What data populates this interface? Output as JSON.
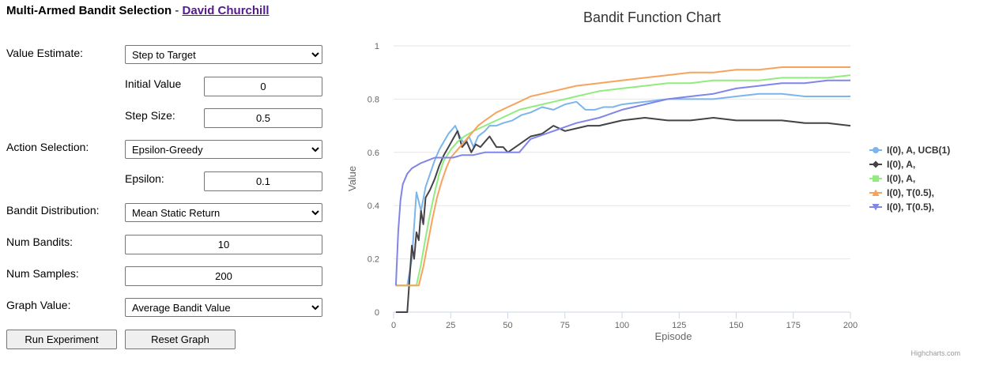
{
  "header": {
    "title": "Multi-Armed Bandit Selection",
    "separator": " - ",
    "author": "David Churchill"
  },
  "controls": {
    "value_estimate": {
      "label": "Value Estimate:",
      "selected": "Step to Target"
    },
    "initial_value": {
      "label": "Initial Value",
      "value": "0"
    },
    "step_size": {
      "label": "Step Size:",
      "value": "0.5"
    },
    "action_selection": {
      "label": "Action Selection:",
      "selected": "Epsilon-Greedy"
    },
    "epsilon": {
      "label": "Epsilon:",
      "value": "0.1"
    },
    "bandit_distribution": {
      "label": "Bandit Distribution:",
      "selected": "Mean Static Return"
    },
    "num_bandits": {
      "label": "Num Bandits:",
      "value": "10"
    },
    "num_samples": {
      "label": "Num Samples:",
      "value": "200"
    },
    "graph_value": {
      "label": "Graph Value:",
      "selected": "Average Bandit Value"
    },
    "run_button": "Run Experiment",
    "reset_button": "Reset Graph"
  },
  "chart_data": {
    "type": "line",
    "title": "Bandit Function Chart",
    "xlabel": "Episode",
    "ylabel": "Value",
    "xlim": [
      0,
      200
    ],
    "ylim": [
      0,
      1
    ],
    "xticks": [
      0,
      25,
      50,
      75,
      100,
      125,
      150,
      175,
      200
    ],
    "yticks": [
      0,
      0.2,
      0.4,
      0.6,
      0.8,
      1
    ],
    "grid": "horizontal",
    "legend_position": "right",
    "credits": "Highcharts.com",
    "series": [
      {
        "name": "I(0), A, UCB(1)",
        "color": "#7cb5ec",
        "marker": "circle",
        "x": [
          1,
          6,
          8,
          10,
          12,
          14,
          16,
          18,
          20,
          22,
          24,
          27,
          29,
          31,
          33,
          35,
          37,
          40,
          42,
          45,
          48,
          52,
          56,
          60,
          65,
          70,
          75,
          80,
          84,
          88,
          92,
          96,
          100,
          110,
          120,
          130,
          140,
          150,
          160,
          170,
          180,
          190,
          200
        ],
        "values": [
          0.1,
          0.1,
          0.2,
          0.45,
          0.38,
          0.47,
          0.52,
          0.57,
          0.61,
          0.64,
          0.67,
          0.7,
          0.66,
          0.63,
          0.66,
          0.62,
          0.66,
          0.68,
          0.7,
          0.7,
          0.71,
          0.72,
          0.74,
          0.75,
          0.77,
          0.76,
          0.78,
          0.79,
          0.76,
          0.76,
          0.77,
          0.77,
          0.78,
          0.79,
          0.8,
          0.8,
          0.8,
          0.81,
          0.82,
          0.82,
          0.81,
          0.81,
          0.81
        ]
      },
      {
        "name": "I(0), A,",
        "color": "#434348",
        "marker": "diamond",
        "x": [
          1,
          6,
          8,
          9,
          10,
          11,
          12,
          13,
          14,
          16,
          18,
          20,
          22,
          24,
          26,
          28,
          30,
          32,
          34,
          36,
          38,
          40,
          42,
          45,
          48,
          50,
          55,
          60,
          65,
          70,
          75,
          80,
          85,
          90,
          100,
          110,
          120,
          130,
          140,
          150,
          160,
          170,
          180,
          190,
          200
        ],
        "values": [
          0,
          0,
          0.25,
          0.2,
          0.3,
          0.27,
          0.38,
          0.33,
          0.43,
          0.46,
          0.5,
          0.55,
          0.59,
          0.62,
          0.65,
          0.68,
          0.62,
          0.64,
          0.6,
          0.63,
          0.62,
          0.64,
          0.66,
          0.62,
          0.62,
          0.6,
          0.63,
          0.66,
          0.67,
          0.7,
          0.68,
          0.69,
          0.7,
          0.7,
          0.72,
          0.73,
          0.72,
          0.72,
          0.73,
          0.72,
          0.72,
          0.72,
          0.71,
          0.71,
          0.7
        ]
      },
      {
        "name": "I(0), A,",
        "color": "#90ed7d",
        "marker": "square",
        "x": [
          1,
          10,
          12,
          14,
          16,
          18,
          20,
          22,
          25,
          28,
          31,
          35,
          40,
          45,
          50,
          55,
          60,
          70,
          80,
          90,
          100,
          110,
          120,
          130,
          140,
          150,
          160,
          170,
          180,
          190,
          200
        ],
        "values": [
          0.1,
          0.1,
          0.18,
          0.28,
          0.37,
          0.45,
          0.52,
          0.57,
          0.61,
          0.64,
          0.66,
          0.68,
          0.7,
          0.72,
          0.74,
          0.76,
          0.77,
          0.79,
          0.81,
          0.83,
          0.84,
          0.85,
          0.86,
          0.86,
          0.87,
          0.87,
          0.87,
          0.88,
          0.88,
          0.88,
          0.89
        ]
      },
      {
        "name": "I(0), T(0.5),",
        "color": "#f7a35c",
        "marker": "triangle",
        "x": [
          1,
          11,
          13,
          15,
          17,
          19,
          21,
          23,
          25,
          28,
          31,
          34,
          37,
          40,
          45,
          50,
          55,
          60,
          70,
          80,
          90,
          100,
          110,
          120,
          130,
          140,
          150,
          160,
          170,
          180,
          190,
          200
        ],
        "values": [
          0.1,
          0.1,
          0.17,
          0.26,
          0.35,
          0.43,
          0.49,
          0.54,
          0.58,
          0.61,
          0.64,
          0.67,
          0.7,
          0.72,
          0.75,
          0.77,
          0.79,
          0.81,
          0.83,
          0.85,
          0.86,
          0.87,
          0.88,
          0.89,
          0.9,
          0.9,
          0.91,
          0.91,
          0.92,
          0.92,
          0.92,
          0.92
        ]
      },
      {
        "name": "I(0), T(0.5),",
        "color": "#8085e9",
        "marker": "triangle-down",
        "x": [
          1,
          2,
          3,
          4,
          6,
          8,
          10,
          12,
          15,
          18,
          22,
          26,
          30,
          35,
          40,
          45,
          50,
          55,
          60,
          70,
          80,
          90,
          100,
          110,
          120,
          130,
          140,
          150,
          160,
          170,
          180,
          190,
          200
        ],
        "values": [
          0.1,
          0.3,
          0.42,
          0.48,
          0.52,
          0.54,
          0.55,
          0.56,
          0.57,
          0.58,
          0.58,
          0.58,
          0.59,
          0.59,
          0.6,
          0.6,
          0.6,
          0.6,
          0.65,
          0.68,
          0.71,
          0.73,
          0.76,
          0.78,
          0.8,
          0.81,
          0.82,
          0.84,
          0.85,
          0.86,
          0.86,
          0.87,
          0.87
        ]
      }
    ]
  }
}
